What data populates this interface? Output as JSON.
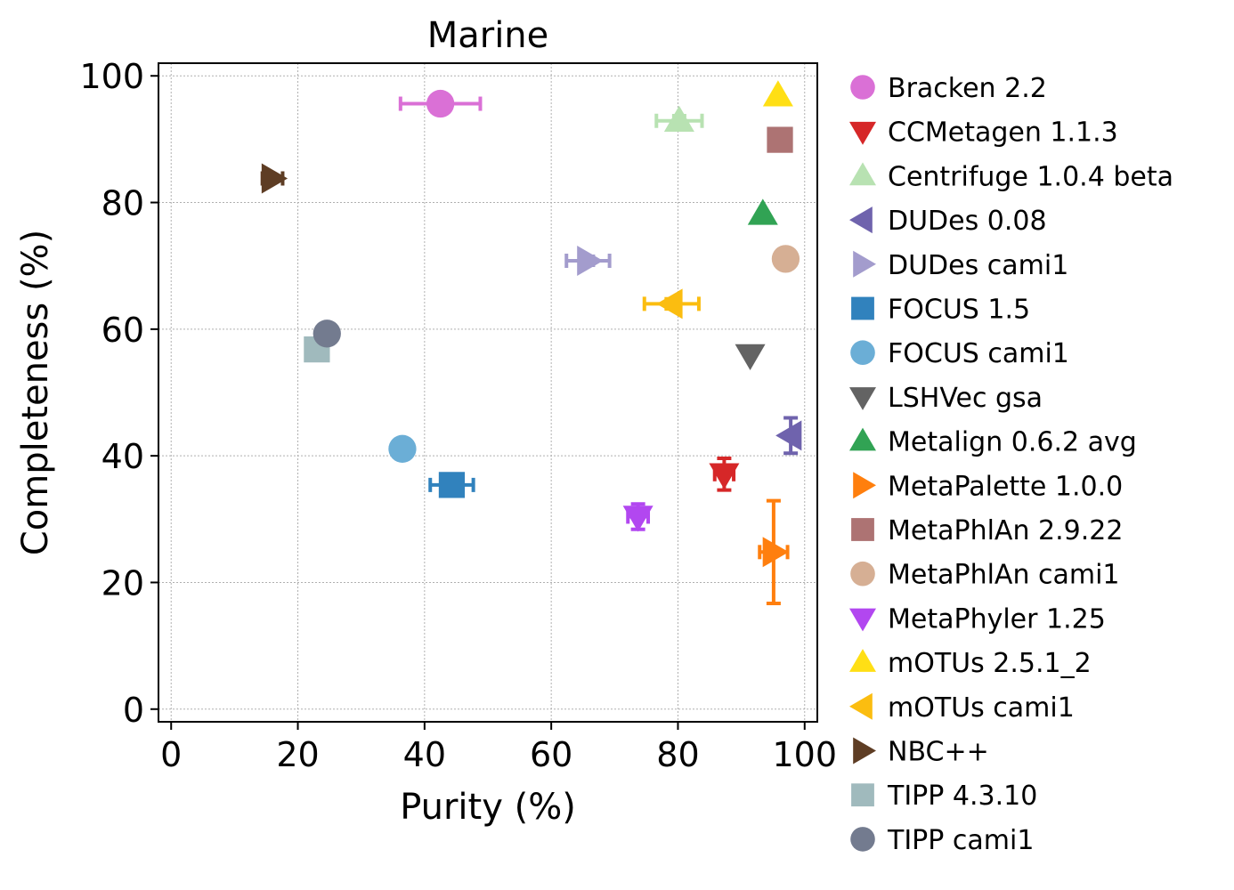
{
  "chart_data": {
    "type": "scatter",
    "title": "Marine",
    "xlabel": "Purity (%)",
    "ylabel": "Completeness (%)",
    "xlim": [
      -2,
      102
    ],
    "ylim": [
      -2,
      102
    ],
    "xticks": [
      0,
      20,
      40,
      60,
      80,
      100
    ],
    "yticks": [
      0,
      20,
      40,
      60,
      80,
      100
    ],
    "xtick_labels": [
      "0",
      "20",
      "40",
      "60",
      "80",
      "100"
    ],
    "ytick_labels": [
      "0",
      "20",
      "40",
      "60",
      "80",
      "100"
    ],
    "grid": true,
    "legend_position": "outside-right",
    "series": [
      {
        "name": "Bracken 2.2",
        "marker": "circle",
        "color": "#da70d6",
        "x": 42.5,
        "y": 95.6,
        "xerr": 6.3,
        "yerr": 0
      },
      {
        "name": "CCMetagen 1.1.3",
        "marker": "triangle-down",
        "color": "#d62728",
        "x": 87.3,
        "y": 37.1,
        "xerr": 1.5,
        "yerr": 2.5
      },
      {
        "name": "Centrifuge 1.0.4 beta",
        "marker": "triangle-up",
        "color": "#b8e2b2",
        "x": 80.2,
        "y": 92.9,
        "xerr": 3.6,
        "yerr": 0.8
      },
      {
        "name": "DUDes 0.08",
        "marker": "triangle-left",
        "color": "#6f63ad",
        "x": 97.8,
        "y": 43.2,
        "xerr": 0,
        "yerr": 2.8
      },
      {
        "name": "DUDes cami1",
        "marker": "triangle-right",
        "color": "#a39ccd",
        "x": 65.8,
        "y": 70.8,
        "xerr": 3.4,
        "yerr": 0.7
      },
      {
        "name": "FOCUS 1.5",
        "marker": "square",
        "color": "#3182bd",
        "x": 44.3,
        "y": 35.4,
        "xerr": 3.4,
        "yerr": 0.8
      },
      {
        "name": "FOCUS cami1",
        "marker": "circle",
        "color": "#6baed6",
        "x": 36.5,
        "y": 41.1,
        "xerr": 1.2,
        "yerr": 1.5
      },
      {
        "name": "LSHVec gsa",
        "marker": "triangle-down",
        "color": "#636363",
        "x": 91.4,
        "y": 55.9,
        "xerr": 0,
        "yerr": 0
      },
      {
        "name": "Metalign 0.6.2 avg",
        "marker": "triangle-up",
        "color": "#31a354",
        "x": 93.4,
        "y": 78.2,
        "xerr": 0,
        "yerr": 0
      },
      {
        "name": "MetaPalette 1.0.0",
        "marker": "triangle-right",
        "color": "#ff7f0e",
        "x": 95.1,
        "y": 24.8,
        "xerr": 2.2,
        "yerr": 8.1
      },
      {
        "name": "MetaPhlAn 2.9.22",
        "marker": "square",
        "color": "#ad7373",
        "x": 96.1,
        "y": 89.9,
        "xerr": 0,
        "yerr": 0
      },
      {
        "name": "MetaPhlAn cami1",
        "marker": "circle",
        "color": "#d6af94",
        "x": 97.0,
        "y": 71.1,
        "xerr": 0,
        "yerr": 0.9
      },
      {
        "name": "MetaPhyler 1.25",
        "marker": "triangle-down",
        "color": "#b247f0",
        "x": 73.7,
        "y": 30.4,
        "xerr": 1.6,
        "yerr": 2.0
      },
      {
        "name": "mOTUs 2.5.1_2",
        "marker": "triangle-up",
        "color": "#ffdf15",
        "x": 95.8,
        "y": 96.9,
        "xerr": 0,
        "yerr": 0
      },
      {
        "name": "mOTUs cami1",
        "marker": "triangle-left",
        "color": "#fbbd10",
        "x": 79.0,
        "y": 64.0,
        "xerr": 4.3,
        "yerr": 0.8
      },
      {
        "name": "NBC++",
        "marker": "triangle-right",
        "color": "#5e3d24",
        "x": 16.0,
        "y": 83.8,
        "xerr": 1.6,
        "yerr": 0
      },
      {
        "name": "TIPP 4.3.10",
        "marker": "square",
        "color": "#a0babd",
        "x": 23.0,
        "y": 56.8,
        "xerr": 0,
        "yerr": 0
      },
      {
        "name": "TIPP cami1",
        "marker": "circle",
        "color": "#737b8f",
        "x": 24.6,
        "y": 59.3,
        "xerr": 0.8,
        "yerr": 0.6
      }
    ]
  }
}
